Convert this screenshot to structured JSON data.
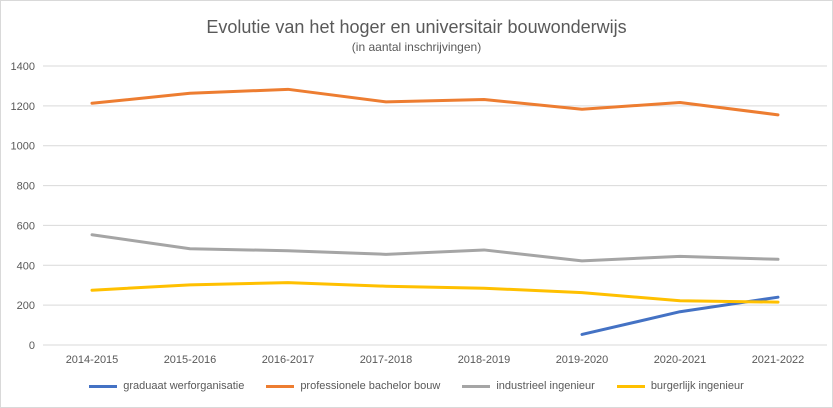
{
  "chart_data": {
    "type": "line",
    "title": "Evolutie van het hoger en universitair bouwonderwijs",
    "subtitle": "(in aantal inschrijvingen)",
    "categories": [
      "2014-2015",
      "2015-2016",
      "2016-2017",
      "2017-2018",
      "2018-2019",
      "2019-2020",
      "2020-2021",
      "2021-2022"
    ],
    "ylim": [
      0,
      1400
    ],
    "yticks": [
      0,
      200,
      400,
      600,
      800,
      1000,
      1200,
      1400
    ],
    "grid": true,
    "legend_position": "bottom",
    "series": [
      {
        "name": "graduaat werforganisatie",
        "color": "#4472c4",
        "values": [
          null,
          null,
          null,
          null,
          null,
          53,
          167,
          240
        ]
      },
      {
        "name": "professionele bachelor bouw",
        "color": "#ed7d31",
        "values": [
          1213,
          1263,
          1283,
          1220,
          1232,
          1183,
          1217,
          1155
        ]
      },
      {
        "name": "industrieel ingenieur",
        "color": "#a5a5a5",
        "values": [
          553,
          483,
          473,
          455,
          477,
          422,
          445,
          430
        ]
      },
      {
        "name": "burgerlijk ingenieur",
        "color": "#ffc000",
        "values": [
          275,
          302,
          313,
          295,
          285,
          263,
          222,
          215
        ]
      }
    ]
  }
}
